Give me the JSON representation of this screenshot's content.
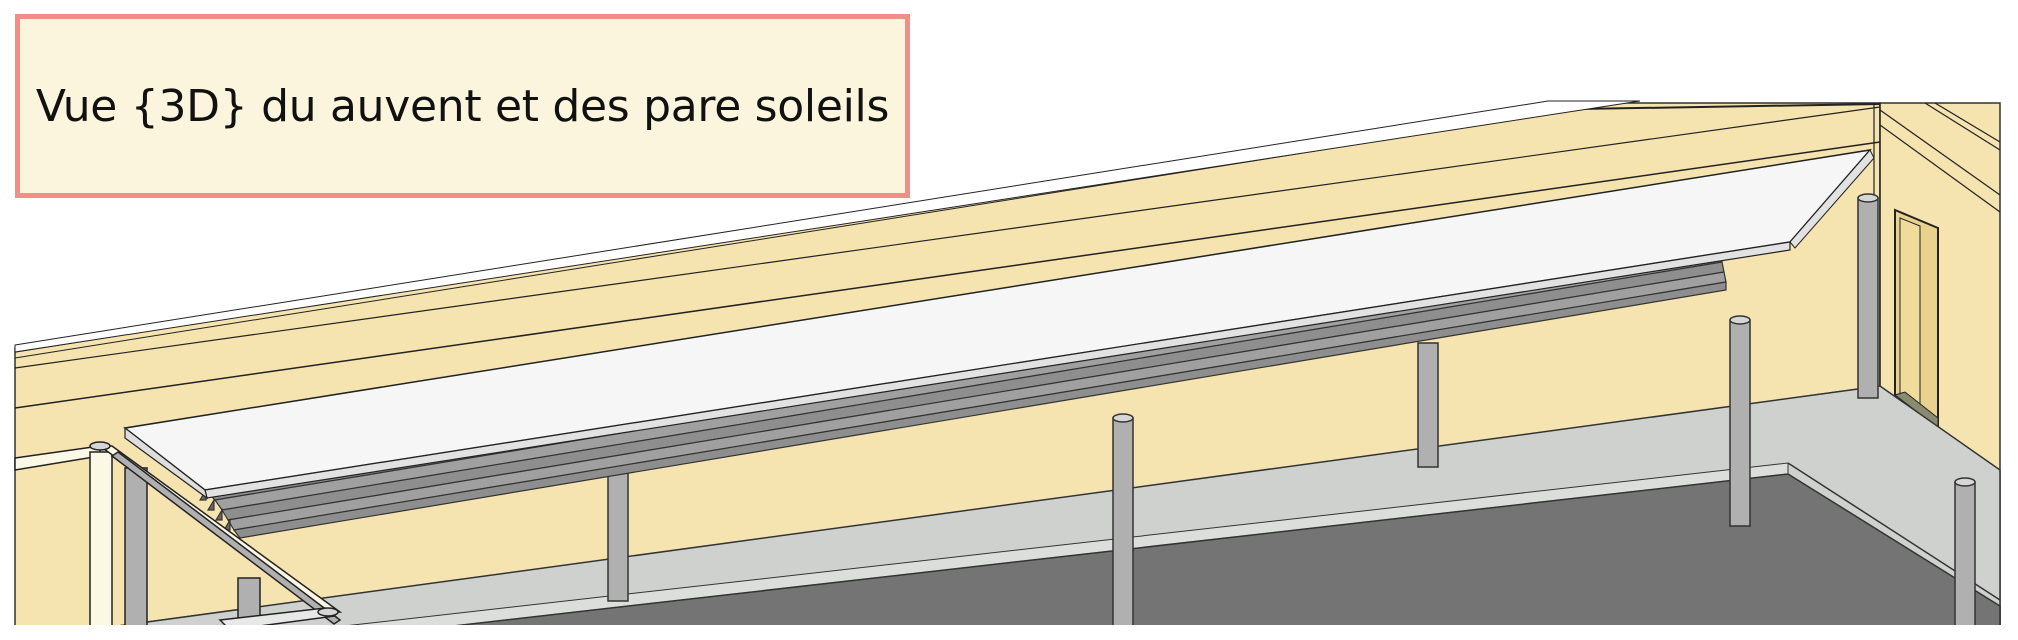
{
  "title": "Vue {3D} du auvent et des pare soleils",
  "colors": {
    "wall": "#f5e3b0",
    "canopy": "#f6f6f6",
    "floor": "#cfd1cf",
    "dark_floor": "#747474",
    "column": "#b0b0b0",
    "frame": "#fcf8e6",
    "title_border": "#f08e88",
    "title_background": "#fcf5dd"
  }
}
